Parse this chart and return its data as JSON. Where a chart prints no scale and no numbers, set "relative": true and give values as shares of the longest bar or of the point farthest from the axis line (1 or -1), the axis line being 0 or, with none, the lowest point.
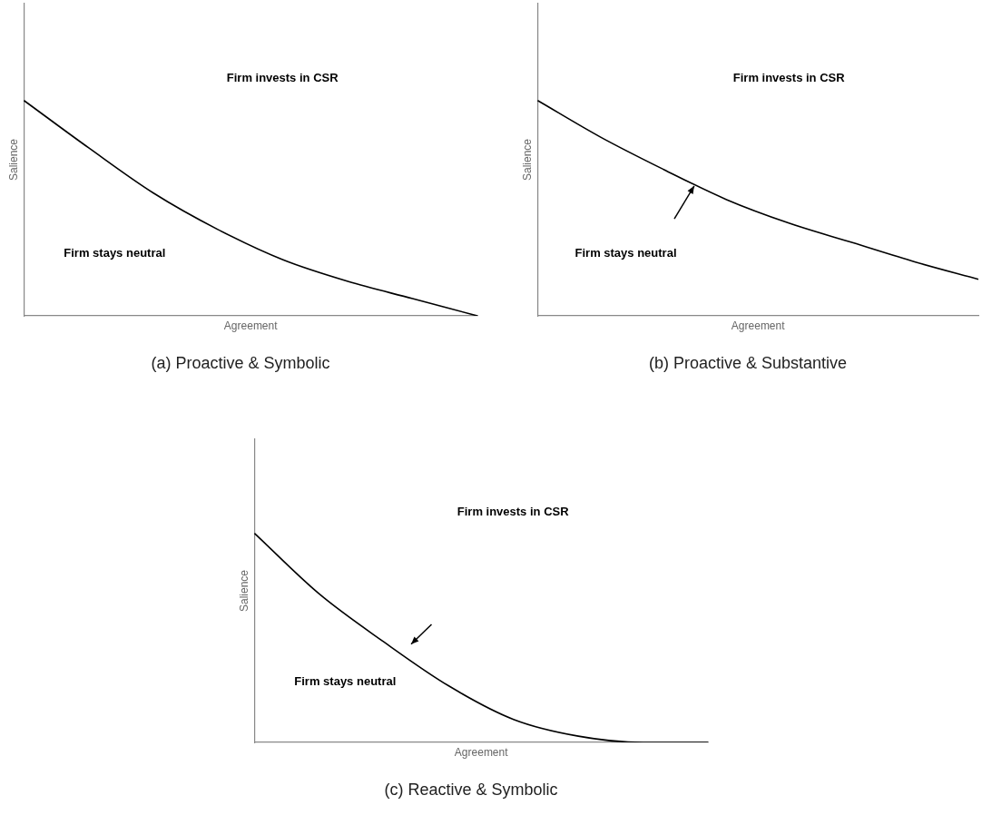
{
  "chart_data": [
    {
      "type": "line",
      "title": "(a) Proactive & Symbolic",
      "xlabel": "Agreement",
      "ylabel": "Salience",
      "relative": true,
      "grid": false,
      "legend": false,
      "tick_labels": false,
      "marker": "none",
      "categories": [
        null,
        null,
        null,
        null,
        null,
        null,
        null,
        null
      ],
      "series": [
        {
          "color": "#000000",
          "values": [
            1,
            0.78,
            0.57,
            0.4,
            0.26,
            0.16,
            0.08,
            0
          ]
        }
      ],
      "annotations": [
        "Firm invests in CSR",
        "Firm stays neutral"
      ]
    },
    {
      "type": "line",
      "title": "(b) Proactive & Substantive",
      "xlabel": "Agreement",
      "ylabel": "Salience",
      "relative": true,
      "grid": false,
      "legend": false,
      "tick_labels": false,
      "marker": "none",
      "categories": [
        null,
        null,
        null,
        null,
        null,
        null,
        null,
        null
      ],
      "series": [
        {
          "color": "#000000",
          "values": [
            1,
            0.83,
            0.68,
            0.54,
            0.43,
            0.34,
            0.25,
            0.17
          ]
        }
      ],
      "annotations": [
        "Firm invests in CSR",
        "Firm stays neutral"
      ]
    },
    {
      "type": "line",
      "title": "(c) Reactive & Symbolic",
      "xlabel": "Agreement",
      "ylabel": "Salience",
      "relative": true,
      "grid": false,
      "legend": false,
      "tick_labels": false,
      "marker": "none",
      "categories": [
        null,
        null,
        null,
        null,
        null,
        null,
        null,
        null
      ],
      "series": [
        {
          "color": "#000000",
          "values": [
            1,
            0.71,
            0.48,
            0.27,
            0.11,
            0.03,
            0,
            0
          ]
        }
      ],
      "annotations": [
        "Firm invests in CSR",
        "Firm stays neutral"
      ]
    }
  ]
}
